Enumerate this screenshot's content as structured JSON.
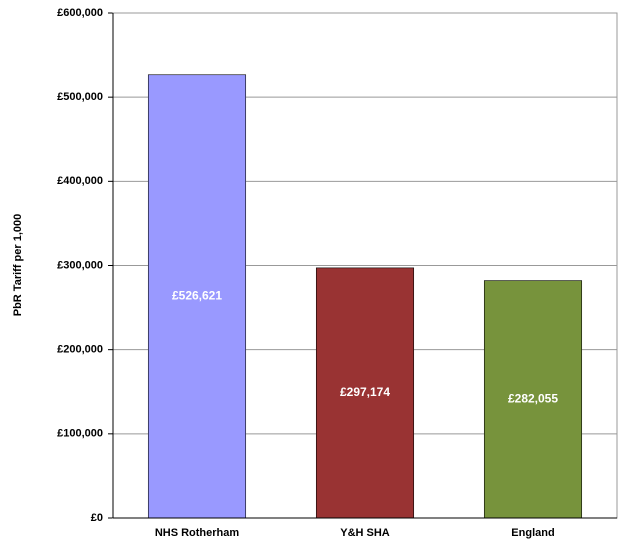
{
  "chart_data": {
    "type": "bar",
    "y_label": "PbR Tariff per 1,000",
    "categories": [
      "NHS Rotherham",
      "Y&H SHA",
      "England"
    ],
    "values": [
      526621,
      297174,
      282055
    ],
    "value_labels": [
      "£526,621",
      "£297,174",
      "£282,055"
    ],
    "colors": [
      "#9999ff",
      "#993333",
      "#77933c"
    ],
    "ylim": [
      0,
      600000
    ],
    "yticks": [
      {
        "value": 0,
        "label": "£0"
      },
      {
        "value": 100000,
        "label": "£100,000"
      },
      {
        "value": 200000,
        "label": "£200,000"
      },
      {
        "value": 300000,
        "label": "£300,000"
      },
      {
        "value": 400000,
        "label": "£400,000"
      },
      {
        "value": 500000,
        "label": "£500,000"
      },
      {
        "value": 600000,
        "label": "£600,000"
      }
    ],
    "grid": true
  }
}
